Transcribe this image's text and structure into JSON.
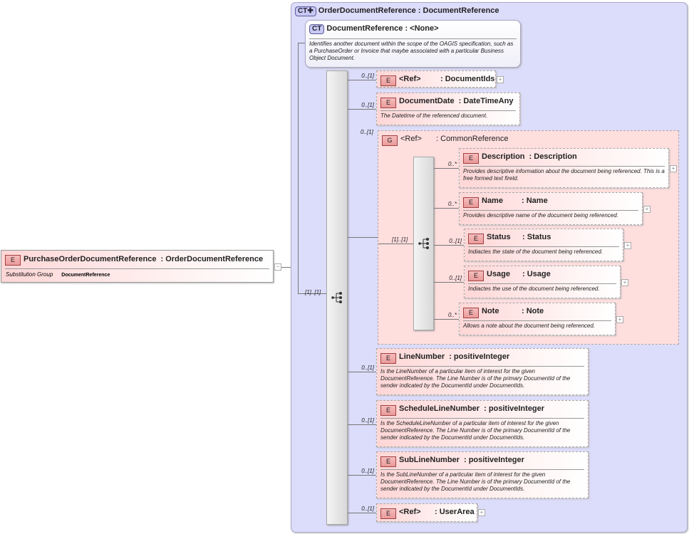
{
  "root": {
    "kind": "E",
    "name": "PurchaseOrderDocumentReference",
    "type": "OrderDocumentReference",
    "sub_label": "Substitution Group",
    "sub_value": "DocumentReference",
    "toggle": "−"
  },
  "outer": {
    "kind": "CT",
    "name": "OrderDocumentReference",
    "type": "DocumentReference"
  },
  "base": {
    "kind": "CT",
    "name": "DocumentReference",
    "type": "<None>",
    "doc": "Identifies another document within the scope of the OAGIS specification, such as a PurchaseOrder or Invoice that maybe associated with a particular Business Object Document."
  },
  "sequence_cardinality": "[1]..[1]",
  "children": [
    {
      "kind": "E",
      "name": "<Ref>",
      "type": "DocumentIds",
      "card": "0..[1]",
      "doc": "",
      "expand": "+"
    },
    {
      "kind": "E",
      "name": "DocumentDate",
      "type": "DateTimeAny",
      "card": "0..[1]",
      "doc": "The Datetime of the referenced document."
    },
    {
      "kind": "E",
      "name": "LineNumber",
      "type": "positiveInteger",
      "card": "0..[1]",
      "doc": "Is the LineNumber of a particular item of interest for the given DocumentReference. The Line Number is of the primary DocumentId of the sender indicated  by the DocumentId under DocumentIds."
    },
    {
      "kind": "E",
      "name": "ScheduleLineNumber",
      "type": "positiveInteger",
      "card": "0..[1]",
      "doc": "Is the ScheduleLineNumber of a particular item of interest for the given DocumentReference. The Line Number is of the primary DocumentId of the sender indicated  by the DocumentId under DocumentIds."
    },
    {
      "kind": "E",
      "name": "SubLineNumber",
      "type": "positiveInteger",
      "card": "0..[1]",
      "doc": "Is the SubLineNumber of a particular item of interest for the given DocumentReference. The Line Number is of the primary DocumentId of the sender indicated  by the DocumentId under DocumentIds."
    },
    {
      "kind": "E",
      "name": "<Ref>",
      "type": "UserArea",
      "card": "0..[1]",
      "doc": "",
      "expand": "+"
    }
  ],
  "group": {
    "kind": "G",
    "name": "<Ref>",
    "type": "CommonReference",
    "card": "0..[1]",
    "sequence_cardinality": "[1]..[1]",
    "children": [
      {
        "kind": "E",
        "name": "Description",
        "type": "Description",
        "card": "0..*",
        "doc": "Provides descriptive information about the document being referenced. This is a free formed text fireld.",
        "expand": "+"
      },
      {
        "kind": "E",
        "name": "Name",
        "type": "Name",
        "card": "0..*",
        "doc": "Provides descriptive name of the document being referenced.",
        "expand": "+"
      },
      {
        "kind": "E",
        "name": "Status",
        "type": "Status",
        "card": "0..[1]",
        "doc": "Indiactes the state of the document being referenced.",
        "expand": "+"
      },
      {
        "kind": "E",
        "name": "Usage",
        "type": "Usage",
        "card": "0..[1]",
        "doc": "Indiactes the use of the document being referenced.",
        "expand": "+"
      },
      {
        "kind": "E",
        "name": "Note",
        "type": "Note",
        "card": "0..*",
        "doc": "Allows a note about the document being referenced.",
        "expand": "+"
      }
    ]
  }
}
